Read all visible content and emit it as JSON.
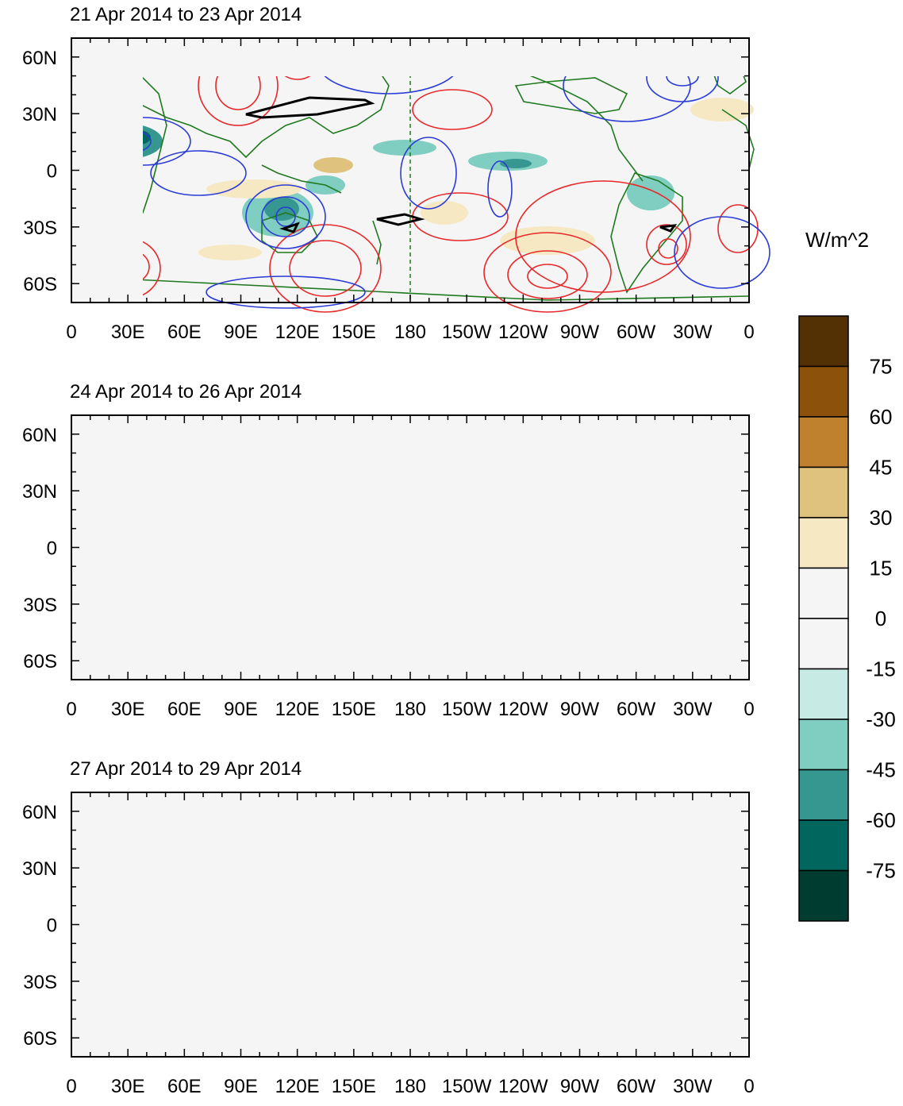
{
  "panels": [
    {
      "title": "21 Apr 2014 to 23 Apr 2014"
    },
    {
      "title": "24 Apr 2014 to 26 Apr 2014"
    },
    {
      "title": "27 Apr 2014 to 29 Apr 2014"
    }
  ],
  "lat_labels": [
    "60N",
    "30N",
    "0",
    "30S",
    "60S"
  ],
  "lon_labels": [
    "0",
    "30E",
    "60E",
    "90E",
    "120E",
    "150E",
    "180",
    "150W",
    "120W",
    "90W",
    "60W",
    "30W",
    "0"
  ],
  "colorbar": {
    "units": "W/m^2",
    "tick_labels": [
      "75",
      "60",
      "45",
      "30",
      "15",
      "0",
      "-15",
      "-30",
      "-45",
      "-60",
      "-75"
    ],
    "colors": [
      "#543005",
      "#8c510a",
      "#bf812d",
      "#dfc27d",
      "#f6e8c3",
      "#f5f5f5",
      "#f5f5f5",
      "#c7eae5",
      "#80cdc1",
      "#35978f",
      "#01665e",
      "#003c30"
    ]
  },
  "colors": {
    "coast": "#1f7a1f",
    "positive_contour": "#e8282a",
    "negative_contour": "#2b3bd6",
    "highlight_contour": "#000000",
    "date_line": "#1f7a1f"
  },
  "map_extent": {
    "lon_range": [
      0,
      360
    ],
    "lat_range": [
      -70,
      70
    ]
  }
}
